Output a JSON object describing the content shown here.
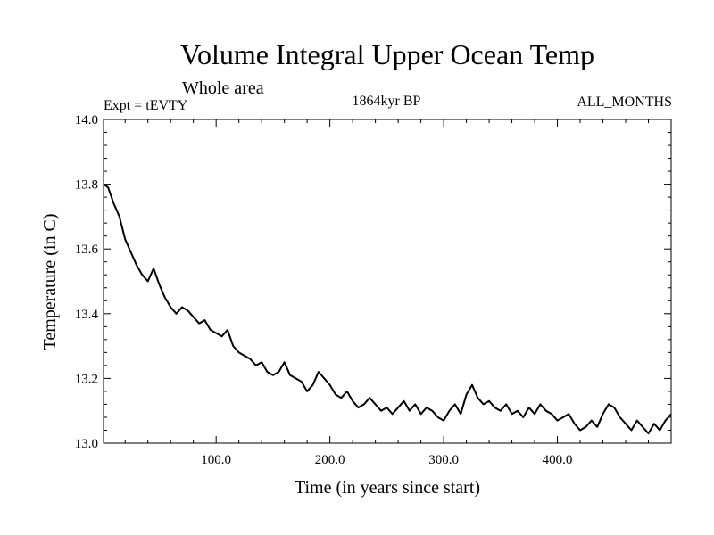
{
  "chart_data": {
    "type": "line",
    "title": "Volume Integral Upper Ocean Temp",
    "subtitle": "Whole area",
    "experiment_label": "Expt = tEVTY",
    "period_label": "1864kyr BP",
    "months_label": "ALL_MONTHS",
    "xlabel": "Time (in years since start)",
    "ylabel": "Temperature (in C)",
    "xlim": [
      1,
      500
    ],
    "ylim": [
      13.0,
      14.0
    ],
    "x_ticks": [
      100,
      200,
      300,
      400
    ],
    "x_tick_labels": [
      "100.0",
      "200.0",
      "300.0",
      "400.0"
    ],
    "y_ticks": [
      13.0,
      13.2,
      13.4,
      13.6,
      13.8,
      14.0
    ],
    "y_tick_labels": [
      "13.0",
      "13.2",
      "13.4",
      "13.6",
      "13.8",
      "14.0"
    ],
    "grid": false,
    "series": [
      {
        "name": "Volume Integral Upper Ocean Temp",
        "x": [
          1,
          5,
          10,
          15,
          20,
          25,
          30,
          35,
          40,
          45,
          50,
          55,
          60,
          65,
          70,
          75,
          80,
          85,
          90,
          95,
          100,
          105,
          110,
          115,
          120,
          125,
          130,
          135,
          140,
          145,
          150,
          155,
          160,
          165,
          170,
          175,
          180,
          185,
          190,
          195,
          200,
          205,
          210,
          215,
          220,
          225,
          230,
          235,
          240,
          245,
          250,
          255,
          260,
          265,
          270,
          275,
          280,
          285,
          290,
          295,
          300,
          305,
          310,
          315,
          320,
          325,
          330,
          335,
          340,
          345,
          350,
          355,
          360,
          365,
          370,
          375,
          380,
          385,
          390,
          395,
          400,
          405,
          410,
          415,
          420,
          425,
          430,
          435,
          440,
          445,
          450,
          455,
          460,
          465,
          470,
          475,
          480,
          485,
          490,
          495,
          500
        ],
        "values": [
          13.8,
          13.79,
          13.74,
          13.7,
          13.63,
          13.59,
          13.55,
          13.52,
          13.5,
          13.54,
          13.49,
          13.45,
          13.42,
          13.4,
          13.42,
          13.41,
          13.39,
          13.37,
          13.38,
          13.35,
          13.34,
          13.33,
          13.35,
          13.3,
          13.28,
          13.27,
          13.26,
          13.24,
          13.25,
          13.22,
          13.21,
          13.22,
          13.25,
          13.21,
          13.2,
          13.19,
          13.16,
          13.18,
          13.22,
          13.2,
          13.18,
          13.15,
          13.14,
          13.16,
          13.13,
          13.11,
          13.12,
          13.14,
          13.12,
          13.1,
          13.11,
          13.09,
          13.11,
          13.13,
          13.1,
          13.12,
          13.09,
          13.11,
          13.1,
          13.08,
          13.07,
          13.1,
          13.12,
          13.09,
          13.15,
          13.18,
          13.14,
          13.12,
          13.13,
          13.11,
          13.1,
          13.12,
          13.09,
          13.1,
          13.08,
          13.11,
          13.09,
          13.12,
          13.1,
          13.09,
          13.07,
          13.08,
          13.09,
          13.06,
          13.04,
          13.05,
          13.07,
          13.05,
          13.09,
          13.12,
          13.11,
          13.08,
          13.06,
          13.04,
          13.07,
          13.05,
          13.03,
          13.06,
          13.04,
          13.07,
          13.09
        ]
      }
    ]
  }
}
